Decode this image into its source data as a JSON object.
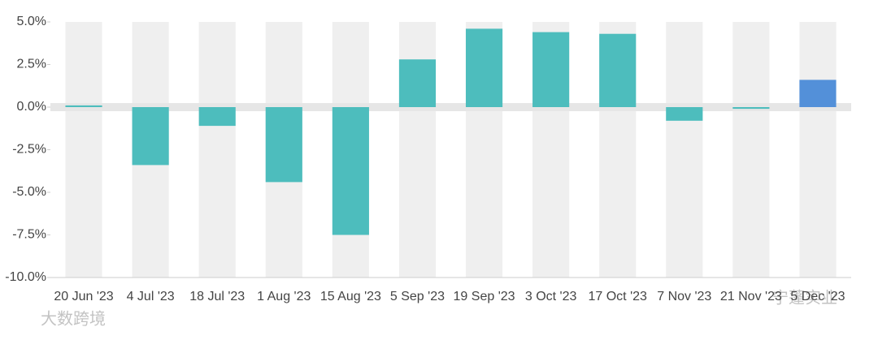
{
  "chart_data": {
    "type": "bar",
    "categories": [
      "20 Jun '23",
      "4 Jul '23",
      "18 Jul '23",
      "1 Aug '23",
      "15 Aug '23",
      "5 Sep '23",
      "19 Sep '23",
      "3 Oct '23",
      "17 Oct '23",
      "7 Nov '23",
      "21 Nov '23",
      "5 Dec '23"
    ],
    "values": [
      0.1,
      -3.4,
      -1.1,
      -4.4,
      -7.5,
      2.8,
      4.6,
      4.4,
      4.3,
      -0.8,
      -0.1,
      1.6
    ],
    "colors": [
      "#4dbdbd",
      "#4dbdbd",
      "#4dbdbd",
      "#4dbdbd",
      "#4dbdbd",
      "#4dbdbd",
      "#4dbdbd",
      "#4dbdbd",
      "#4dbdbd",
      "#4dbdbd",
      "#4dbdbd",
      "#5390d9"
    ],
    "ylim": [
      -10,
      5
    ],
    "yticks": [
      {
        "value": -10,
        "label": "-10.0%"
      },
      {
        "value": -7.5,
        "label": "-7.5%"
      },
      {
        "value": -5,
        "label": "-5.0%"
      },
      {
        "value": -2.5,
        "label": "-2.5%"
      },
      {
        "value": 0,
        "label": "0.0%"
      },
      {
        "value": 2.5,
        "label": "2.5%"
      },
      {
        "value": 5,
        "label": "5.0%"
      }
    ],
    "watermarks": [
      "大数跨境",
      "宁蓬实业"
    ]
  }
}
